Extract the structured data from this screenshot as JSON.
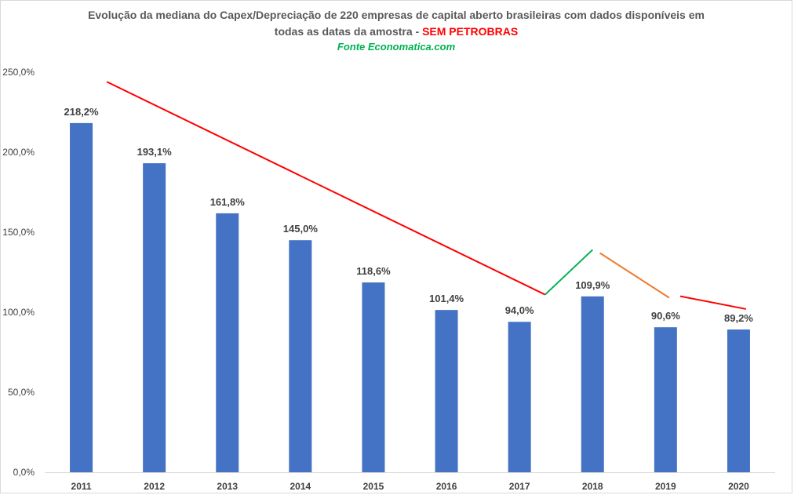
{
  "chart_data": {
    "type": "bar",
    "title_line1": "Evolução da mediana do Capex/Depreciação de 220 empresas de capital aberto brasileiras com dados disponíveis em",
    "title_line2_prefix": "todas as datas da amostra - ",
    "title_line2_highlight": "SEM PETROBRAS",
    "subtitle": "Fonte Economatica.com",
    "categories": [
      "2011",
      "2012",
      "2013",
      "2014",
      "2015",
      "2016",
      "2017",
      "2018",
      "2019",
      "2020"
    ],
    "values": [
      218.2,
      193.1,
      161.8,
      145.0,
      118.6,
      101.4,
      94.0,
      109.9,
      90.6,
      89.2
    ],
    "data_labels": [
      "218,2%",
      "193,1%",
      "161,8%",
      "145,0%",
      "118,6%",
      "101,4%",
      "94,0%",
      "109,9%",
      "90,6%",
      "89,2%"
    ],
    "y_ticks": [
      0,
      50,
      100,
      150,
      200,
      250
    ],
    "y_tick_labels": [
      "0,0%",
      "50,0%",
      "100,0%",
      "150,0%",
      "200,0%",
      "250,0%"
    ],
    "ylim": [
      0,
      250
    ],
    "grid": false,
    "legend": "none",
    "xlabel": "",
    "ylabel": "",
    "bar_color": "#4472c4",
    "trend_annotations": [
      {
        "name": "downtrend-2011-2017",
        "color": "#ff0000",
        "x0": 2011.35,
        "y0": 244,
        "x1": 2017.35,
        "y1": 111
      },
      {
        "name": "uptrend-2017-2018",
        "color": "#00b050",
        "x0": 2017.35,
        "y0": 111,
        "x1": 2018.0,
        "y1": 139
      },
      {
        "name": "downtrend-2018-2019",
        "color": "#ed7d31",
        "x0": 2018.1,
        "y0": 137,
        "x1": 2019.05,
        "y1": 109
      },
      {
        "name": "downtrend-2019-2020",
        "color": "#ff0000",
        "x0": 2019.2,
        "y0": 110,
        "x1": 2020.1,
        "y1": 102
      }
    ],
    "colors": {
      "title": "#595959",
      "highlight": "#ff0000",
      "source": "#00b050",
      "axis": "#d9d9d9",
      "text": "#404040"
    }
  }
}
